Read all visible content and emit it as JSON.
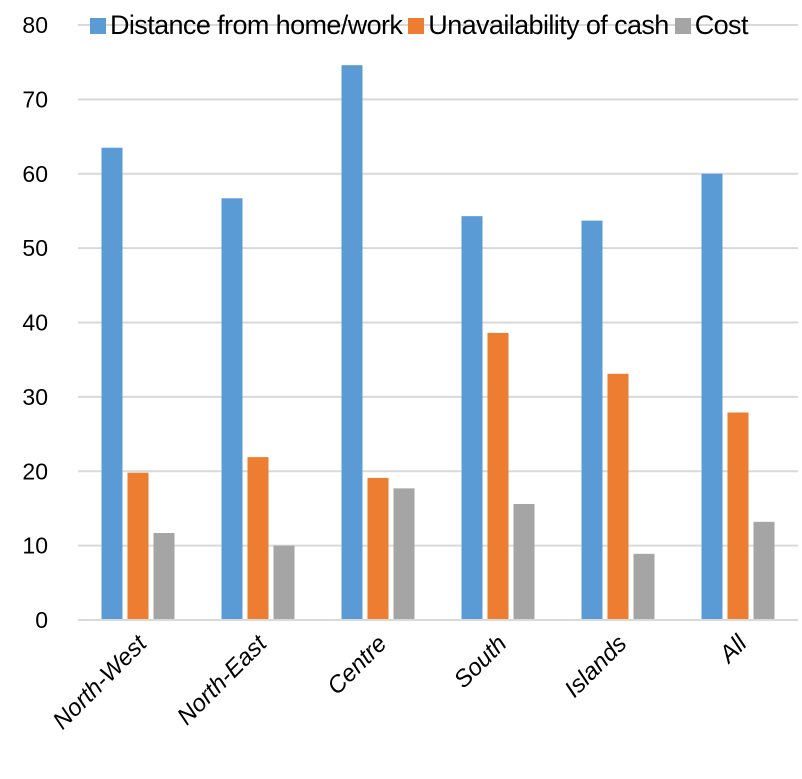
{
  "chart_data": {
    "type": "bar",
    "categories": [
      "North-West",
      "North-East",
      "Centre",
      "South",
      "Islands",
      "All"
    ],
    "series": [
      {
        "name": "Distance from home/work",
        "values": [
          63.5,
          56.7,
          74.6,
          54.3,
          53.7,
          60.0
        ],
        "color": "#5b9bd5"
      },
      {
        "name": "Unavailability of cash",
        "values": [
          19.8,
          21.9,
          19.1,
          38.6,
          33.1,
          27.9
        ],
        "color": "#ed7d31"
      },
      {
        "name": "Cost",
        "values": [
          11.7,
          10.0,
          17.7,
          15.6,
          8.9,
          13.2
        ],
        "color": "#a5a5a5"
      }
    ],
    "yticks": [
      0,
      10,
      20,
      30,
      40,
      50,
      60,
      70,
      80
    ],
    "ylim": [
      0,
      80
    ],
    "grid": true,
    "legend_position": "top",
    "title": "",
    "xlabel": "",
    "ylabel": ""
  }
}
